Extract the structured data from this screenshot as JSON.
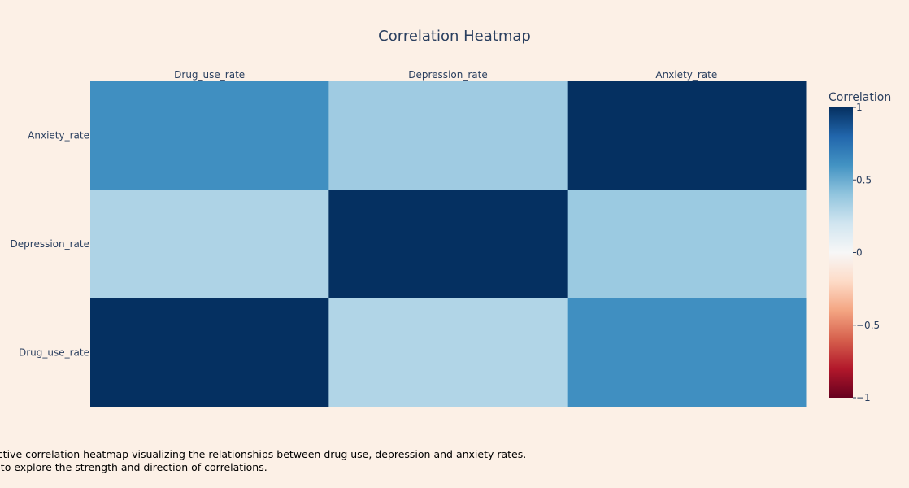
{
  "chart_data": {
    "type": "heatmap",
    "title": "Correlation Heatmap",
    "x_categories": [
      "Drug_use_rate",
      "Depression_rate",
      "Anxiety_rate"
    ],
    "y_categories": [
      "Anxiety_rate",
      "Depression_rate",
      "Drug_use_rate"
    ],
    "z": [
      [
        0.62,
        0.36,
        1.0
      ],
      [
        0.31,
        1.0,
        0.37
      ],
      [
        1.0,
        0.3,
        0.62
      ]
    ],
    "zlim": [
      -1,
      1
    ],
    "colorscale": [
      [
        0.0,
        "#67001f"
      ],
      [
        0.1,
        "#b2182b"
      ],
      [
        0.2,
        "#d6604d"
      ],
      [
        0.3,
        "#f4a582"
      ],
      [
        0.4,
        "#fddbc7"
      ],
      [
        0.5,
        "#f7f7f7"
      ],
      [
        0.6,
        "#d1e5f0"
      ],
      [
        0.7,
        "#92c5de"
      ],
      [
        0.8,
        "#4393c3"
      ],
      [
        0.9,
        "#2166ac"
      ],
      [
        1.0,
        "#053061"
      ]
    ],
    "colorbar": {
      "title": "Correlation",
      "ticks": [
        1,
        0.5,
        0,
        -0.5,
        -1
      ],
      "tick_labels": [
        "1",
        "0.5",
        "0",
        "−0.5",
        "−1"
      ]
    }
  },
  "caption": {
    "line1": "ractive correlation heatmap visualizing the relationships between drug use, depression and anxiety rates.",
    "line2": "er to explore the strength and direction of correlations."
  },
  "colors": {
    "background": "#fcf0e6",
    "text": "#2a3f5f"
  }
}
